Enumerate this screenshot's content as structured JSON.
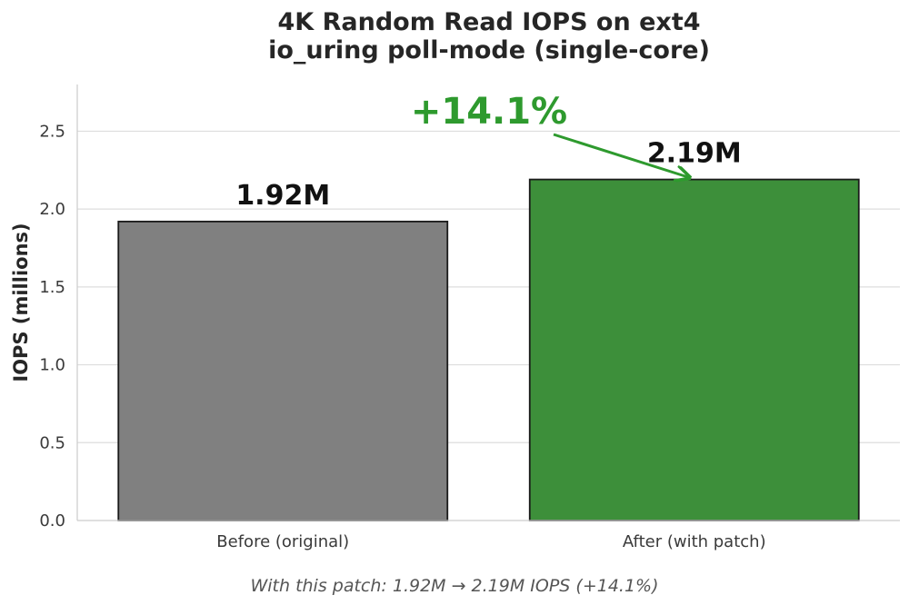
{
  "chart_data": {
    "type": "bar",
    "title_lines": [
      "4K Random Read IOPS on ext4",
      "io_uring poll-mode (single-core)"
    ],
    "ylabel": "IOPS (millions)",
    "xlabel": "",
    "categories": [
      "Before (original)",
      "After (with patch)"
    ],
    "values": [
      1.92,
      2.19
    ],
    "value_labels": [
      "1.92M",
      "2.19M"
    ],
    "bar_colors": [
      "#808080",
      "#3d8f3a"
    ],
    "ylim": [
      0,
      2.8
    ],
    "yticks": [
      0.0,
      0.5,
      1.0,
      1.5,
      2.0,
      2.5
    ],
    "ytick_labels": [
      "0.0",
      "0.5",
      "1.0",
      "1.5",
      "2.0",
      "2.5"
    ],
    "grid": "horizontal",
    "annotation": {
      "text": "+14.1%",
      "color": "#2e9a2e",
      "points_to": "After (with patch)"
    },
    "caption": "With this patch: 1.92M → 2.19M IOPS (+14.1%)"
  }
}
